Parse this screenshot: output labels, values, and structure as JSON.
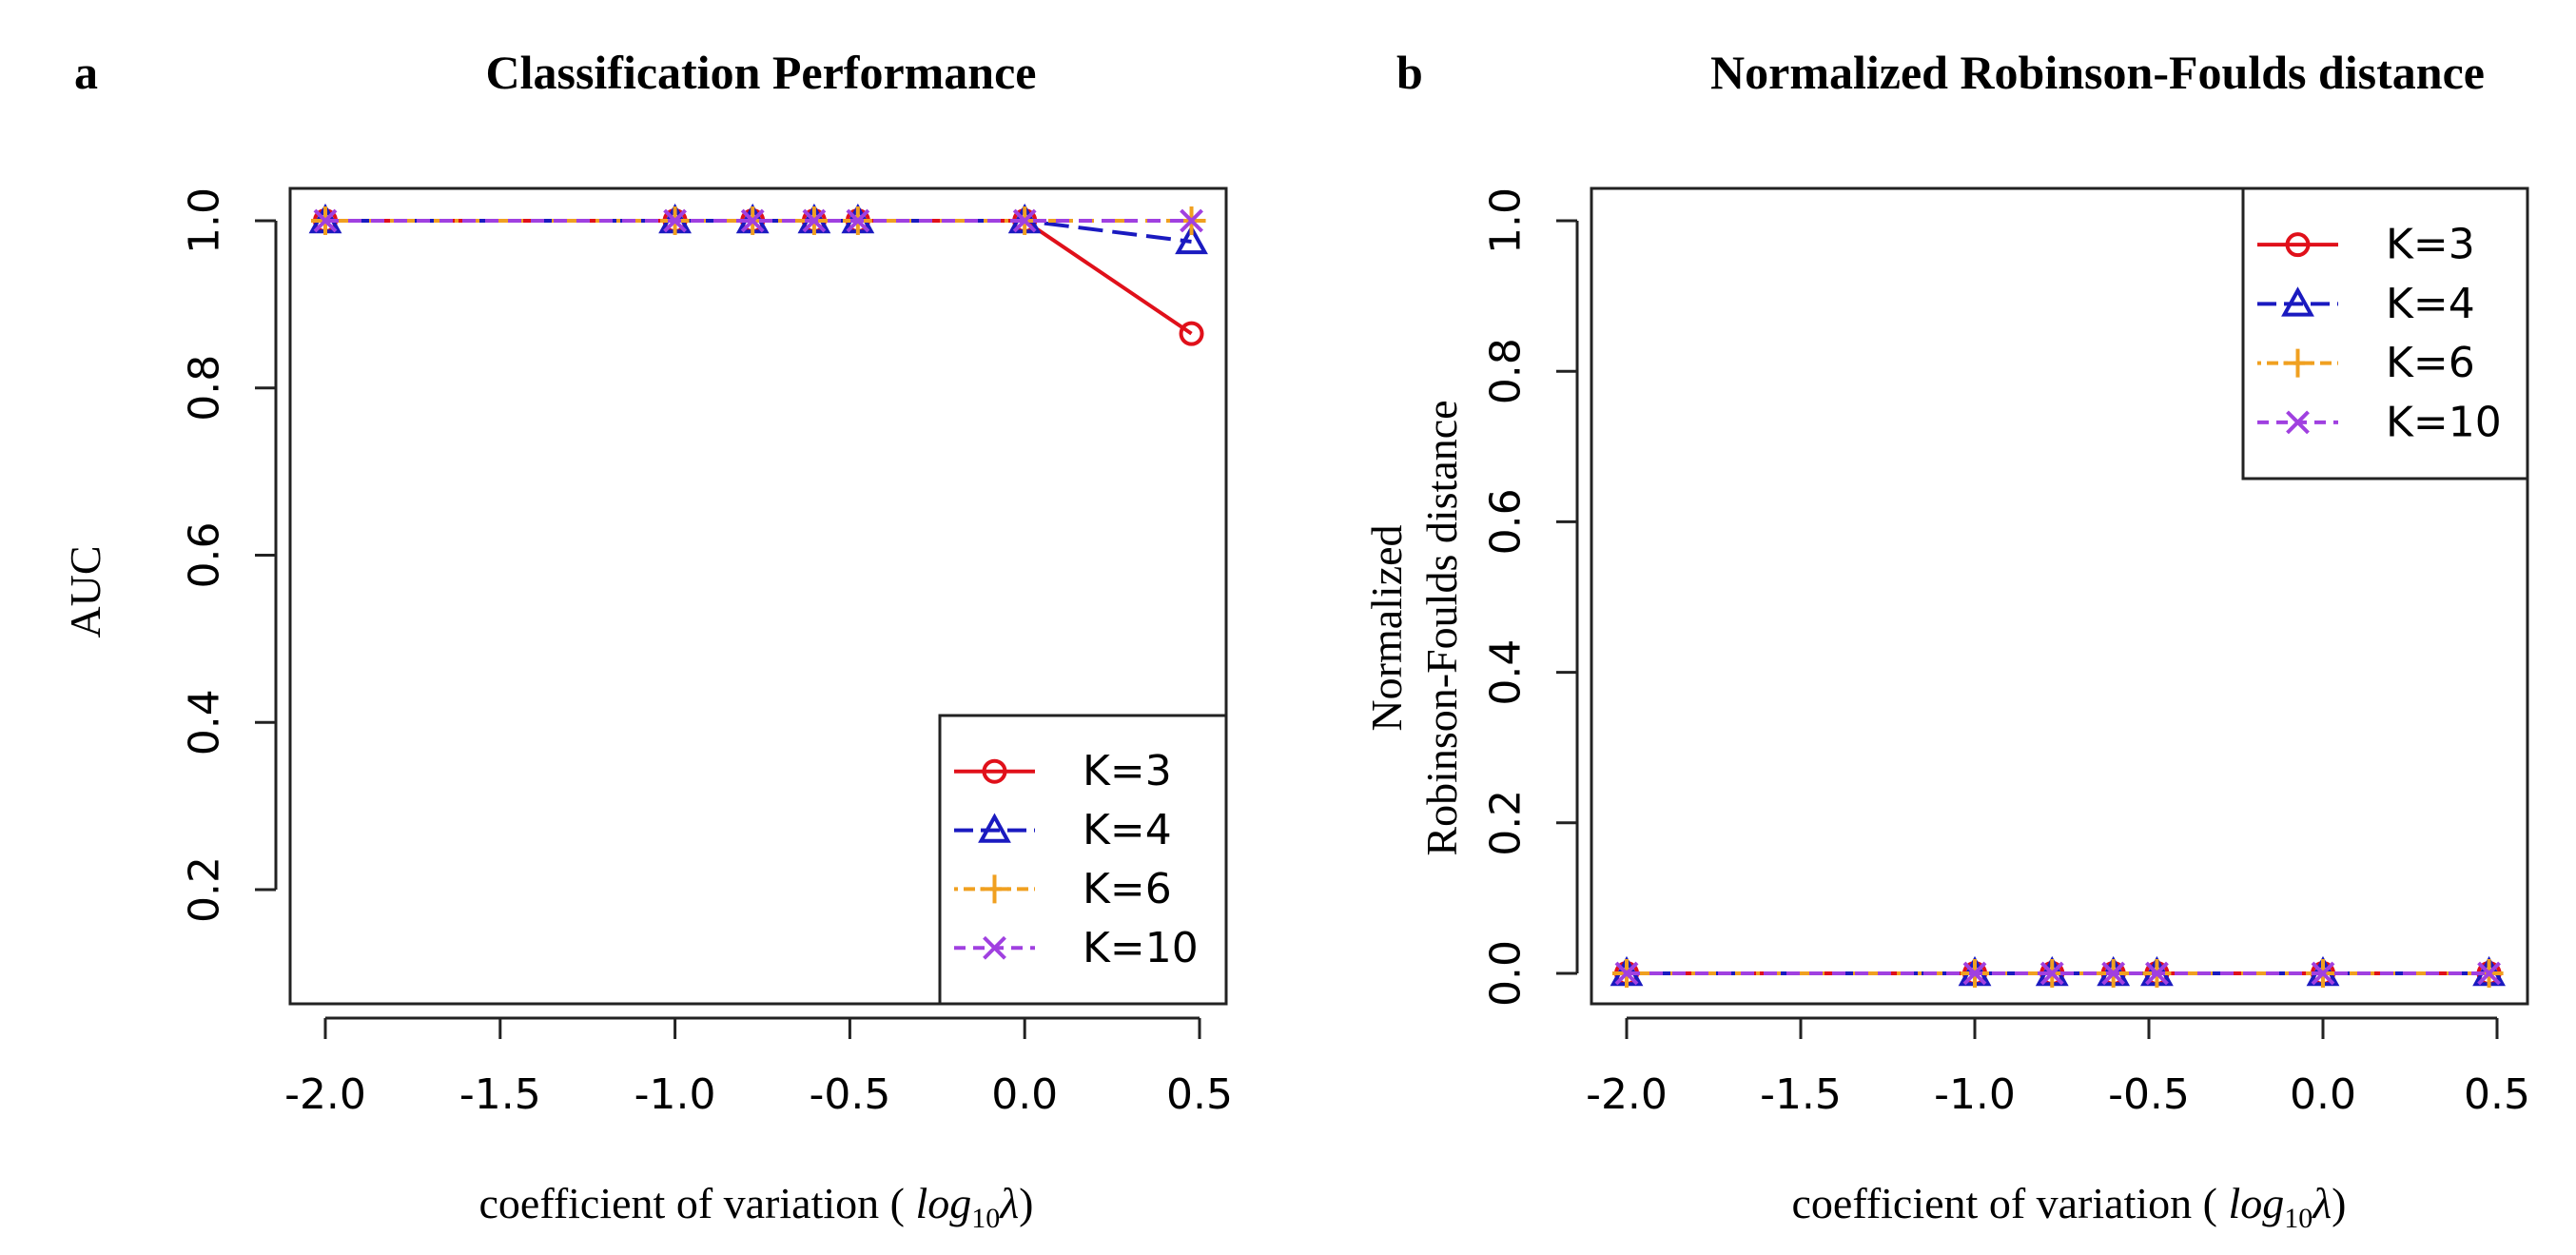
{
  "panels": [
    {
      "letter": "a",
      "title": "Classification Performance",
      "ylabel_lines": [
        "AUC"
      ],
      "xlabel_prefix": "coefficient of variation ( ",
      "xlabel_math": "log",
      "xlabel_sub": "10",
      "xlabel_lambda": "λ",
      "xlabel_suffix": ")",
      "xticks": [
        "-2.0",
        "-1.5",
        "-1.0",
        "-0.5",
        "0.0",
        "0.5"
      ],
      "yticks": [
        "0.2",
        "0.4",
        "0.6",
        "0.8",
        "1.0"
      ],
      "legend": [
        "K=3",
        "K=4",
        "K=6",
        "K=10"
      ]
    },
    {
      "letter": "b",
      "title": "Normalized Robinson-Foulds distance",
      "ylabel_lines": [
        "Normalized",
        "Robinson-Foulds distance"
      ],
      "xlabel_prefix": "coefficient of variation ( ",
      "xlabel_math": "log",
      "xlabel_sub": "10",
      "xlabel_lambda": "λ",
      "xlabel_suffix": ")",
      "xticks": [
        "-2.0",
        "-1.5",
        "-1.0",
        "-0.5",
        "0.0",
        "0.5"
      ],
      "yticks": [
        "0.0",
        "0.2",
        "0.4",
        "0.6",
        "0.8",
        "1.0"
      ],
      "legend": [
        "K=3",
        "K=4",
        "K=6",
        "K=10"
      ]
    }
  ],
  "chart_data": [
    {
      "type": "line",
      "title": "Classification Performance",
      "xlabel": "coefficient of variation ( log10 λ)",
      "ylabel": "AUC",
      "x": [
        -2.0,
        -1.0,
        -0.778,
        -0.602,
        -0.477,
        0.0,
        0.477
      ],
      "xlim": [
        -2.1,
        0.55
      ],
      "ylim": [
        0.07,
        1.04
      ],
      "grid": false,
      "legend_position": "bottom-right",
      "series": [
        {
          "name": "K=3",
          "values": [
            1.0,
            1.0,
            1.0,
            1.0,
            1.0,
            1.0,
            0.865
          ],
          "color": "#e0101a",
          "marker": "circle",
          "dash": "solid"
        },
        {
          "name": "K=4",
          "values": [
            1.0,
            1.0,
            1.0,
            1.0,
            1.0,
            1.0,
            0.975
          ],
          "color": "#1a1ac0",
          "marker": "triangle",
          "dash": "longdash"
        },
        {
          "name": "K=6",
          "values": [
            1.0,
            1.0,
            1.0,
            1.0,
            1.0,
            1.0,
            1.0
          ],
          "color": "#f0a020",
          "marker": "plus",
          "dash": "dotdash"
        },
        {
          "name": "K=10",
          "values": [
            1.0,
            1.0,
            1.0,
            1.0,
            1.0,
            1.0,
            1.0
          ],
          "color": "#a040e0",
          "marker": "x",
          "dash": "dash"
        }
      ]
    },
    {
      "type": "line",
      "title": "Normalized Robinson-Foulds distance",
      "xlabel": "coefficient of variation ( log10 λ)",
      "ylabel": "Normalized Robinson-Foulds distance",
      "x": [
        -2.0,
        -1.0,
        -0.778,
        -0.602,
        -0.477,
        0.0,
        0.477
      ],
      "xlim": [
        -2.1,
        0.55
      ],
      "ylim": [
        -0.04,
        1.04
      ],
      "grid": false,
      "legend_position": "top-right",
      "series": [
        {
          "name": "K=3",
          "values": [
            0,
            0,
            0,
            0,
            0,
            0,
            0
          ],
          "color": "#e0101a",
          "marker": "circle",
          "dash": "solid"
        },
        {
          "name": "K=4",
          "values": [
            0,
            0,
            0,
            0,
            0,
            0,
            0
          ],
          "color": "#1a1ac0",
          "marker": "triangle",
          "dash": "longdash"
        },
        {
          "name": "K=6",
          "values": [
            0,
            0,
            0,
            0,
            0,
            0,
            0
          ],
          "color": "#f0a020",
          "marker": "plus",
          "dash": "dotdash"
        },
        {
          "name": "K=10",
          "values": [
            0,
            0,
            0,
            0,
            0,
            0,
            0
          ],
          "color": "#a040e0",
          "marker": "x",
          "dash": "dash"
        }
      ]
    }
  ]
}
